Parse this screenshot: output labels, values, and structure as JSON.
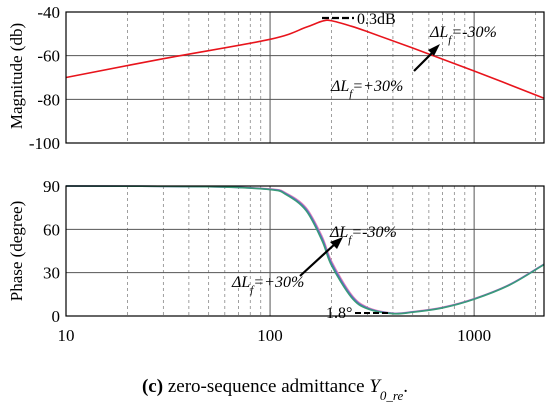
{
  "caption": {
    "tag": "(c)",
    "text_before": " zero-sequence admittance ",
    "sym": "Y",
    "sub": "0_re",
    "end": "."
  },
  "chart_data": [
    {
      "type": "line",
      "panel": "magnitude",
      "ylabel": "Magnitude (db)",
      "xscale": "log",
      "xlim": [
        10,
        2200
      ],
      "ylim": [
        -100,
        -40
      ],
      "yticks": [
        -40,
        -60,
        -80,
        -100
      ],
      "ytick_labels": [
        "-40",
        "-60",
        "-80",
        "-100"
      ],
      "grid": true,
      "series": [
        {
          "color": "#e8141c",
          "x": [
            10,
            30,
            100,
            150,
            180,
            200,
            250,
            300,
            500,
            1000,
            2200
          ],
          "y": [
            -70,
            -61.4,
            -52.5,
            -47.0,
            -44.2,
            -44.0,
            -46.5,
            -49.0,
            -56.5,
            -67.0,
            -79.5
          ]
        }
      ],
      "annotations": [
        {
          "text": "0.3dB",
          "style": "plain"
        },
        {
          "text": "ΔLf=-30%",
          "style": "italic",
          "base": "ΔL",
          "sub": "f",
          "rest": "=-30%"
        },
        {
          "text": "ΔLf=+30%",
          "style": "italic",
          "base": "ΔL",
          "sub": "f",
          "rest": "=+30%"
        }
      ]
    },
    {
      "type": "line",
      "panel": "phase",
      "ylabel": "Phase (degree)",
      "xscale": "log",
      "xlim": [
        10,
        2200
      ],
      "ylim": [
        0,
        90
      ],
      "yticks": [
        90,
        60,
        30,
        0
      ],
      "ytick_labels": [
        "90",
        "60",
        "30",
        "0"
      ],
      "xticks": [
        10,
        100,
        1000
      ],
      "xtick_labels": [
        "10",
        "100",
        "1000"
      ],
      "grid": true,
      "series": [
        {
          "color": "#e58ab8",
          "x": [
            10,
            50,
            100,
            120,
            150,
            180,
            200,
            250,
            300,
            400,
            500,
            700,
            1000,
            1500,
            2200
          ],
          "y": [
            90,
            89.5,
            88,
            85,
            75,
            55,
            38,
            15,
            6,
            2,
            3,
            6,
            12,
            22,
            36
          ]
        },
        {
          "color": "#5a68c8",
          "x": [
            10,
            50,
            100,
            120,
            150,
            180,
            200,
            250,
            300,
            400,
            500,
            700,
            1000,
            1500,
            2200
          ],
          "y": [
            90,
            89.5,
            87.7,
            84.5,
            74,
            53.5,
            36.5,
            14,
            5.5,
            1.8,
            2.8,
            5.8,
            11.8,
            21.8,
            35.8
          ]
        },
        {
          "color": "#3a9a7a",
          "x": [
            10,
            50,
            100,
            120,
            150,
            180,
            200,
            250,
            300,
            400,
            500,
            700,
            1000,
            1500,
            2200
          ],
          "y": [
            90,
            89.5,
            87.5,
            84,
            73,
            52,
            35,
            13,
            5,
            1.6,
            2.6,
            5.6,
            11.6,
            21.6,
            35.6
          ]
        }
      ],
      "annotations": [
        {
          "text": "ΔLf=-30%",
          "style": "italic",
          "base": "ΔL",
          "sub": "f",
          "rest": "=-30%"
        },
        {
          "text": "ΔLf=+30%",
          "style": "italic",
          "base": "ΔL",
          "sub": "f",
          "rest": "=+30%"
        },
        {
          "text": "1.8°",
          "style": "plain"
        }
      ]
    }
  ]
}
